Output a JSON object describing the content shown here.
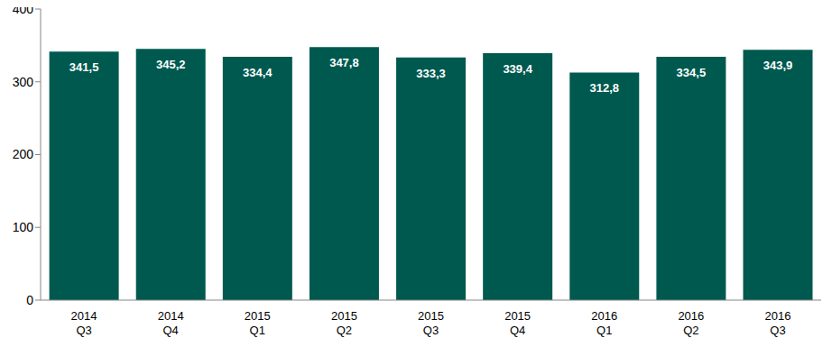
{
  "chart_data": {
    "type": "bar",
    "categories": [
      "2014 Q3",
      "2014 Q4",
      "2015 Q1",
      "2015 Q2",
      "2015 Q3",
      "2015 Q4",
      "2016 Q1",
      "2016 Q2",
      "2016 Q3"
    ],
    "values": [
      341.5,
      345.2,
      334.4,
      347.8,
      333.3,
      339.4,
      312.8,
      334.5,
      343.9
    ],
    "value_labels": [
      "341,5",
      "345,2",
      "334,4",
      "347,8",
      "333,3",
      "339,4",
      "312,8",
      "334,5",
      "343,9"
    ],
    "color": "#00594f",
    "ylim": [
      0,
      400
    ],
    "yticks": [
      0,
      100,
      200,
      300,
      400
    ],
    "grid": false,
    "data_labels": true
  }
}
